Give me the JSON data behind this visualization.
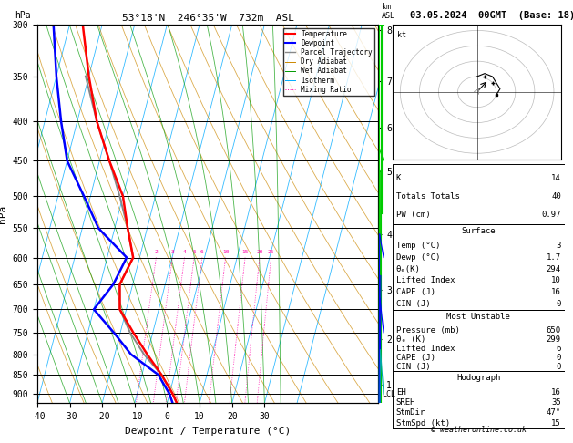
{
  "title_left": "53°18'N  246°35'W  732m  ASL",
  "title_right": "03.05.2024  00GMT  (Base: 18)",
  "xlabel": "Dewpoint / Temperature (°C)",
  "ylabel_left": "hPa",
  "pressure_levels": [
    300,
    350,
    400,
    450,
    500,
    550,
    600,
    650,
    700,
    750,
    800,
    850,
    900
  ],
  "km_ticks": [
    8,
    7,
    6,
    5,
    4,
    3,
    2,
    1
  ],
  "km_pressures": [
    305,
    355,
    408,
    465,
    560,
    660,
    765,
    875
  ],
  "xmin": -40,
  "xmax": 35,
  "pmin": 300,
  "pmax": 925,
  "temp_color": "#ff0000",
  "dewp_color": "#0000ff",
  "parcel_color": "#888888",
  "dry_adiabat_color": "#cc8800",
  "wet_adiabat_color": "#009900",
  "isotherm_color": "#00aaff",
  "mixing_ratio_color": "#ff00aa",
  "background_color": "#ffffff",
  "legend_entries": [
    "Temperature",
    "Dewpoint",
    "Parcel Trajectory",
    "Dry Adiabat",
    "Wet Adiabat",
    "Isotherm",
    "Mixing Ratio"
  ],
  "legend_colors": [
    "#ff0000",
    "#0000ff",
    "#888888",
    "#cc8800",
    "#009900",
    "#00aaff",
    "#ff00aa"
  ],
  "legend_styles": [
    "-",
    "-",
    "-",
    "-",
    "-",
    "-",
    ":"
  ],
  "mixing_ratio_labels": [
    2,
    3,
    4,
    5,
    6,
    10,
    15,
    20,
    25
  ],
  "temp_p": [
    925,
    900,
    850,
    800,
    750,
    700,
    650,
    600,
    550,
    500,
    450,
    400,
    350,
    300
  ],
  "temp_T": [
    3,
    1,
    -4,
    -10,
    -16,
    -22,
    -24,
    -22,
    -26,
    -30,
    -37,
    -44,
    -50,
    -56
  ],
  "dewp_p": [
    925,
    900,
    850,
    800,
    750,
    700,
    650,
    600,
    550,
    500,
    450,
    400,
    350,
    300
  ],
  "dewp_T": [
    1.7,
    0,
    -5,
    -15,
    -22,
    -30,
    -26,
    -24,
    -35,
    -42,
    -50,
    -55,
    -60,
    -65
  ],
  "parcel_p": [
    925,
    900,
    850,
    800,
    750,
    700,
    650,
    600,
    550,
    500,
    450,
    400,
    350
  ],
  "parcel_T": [
    3,
    1,
    -4,
    -11,
    -17,
    -22,
    -24,
    -22,
    -26,
    -31,
    -37,
    -44,
    -51
  ],
  "K": "14",
  "TotalsT": "40",
  "PW_cm": "0.97",
  "lcl_pressure": 900,
  "copyright": "© weatheronline.co.uk",
  "surf_temp": "3",
  "surf_dewp": "1.7",
  "surf_theta_e": "294",
  "surf_li": "10",
  "surf_cape": "16",
  "surf_cin": "0",
  "mu_pres": "650",
  "mu_theta_e": "299",
  "mu_li": "6",
  "mu_cape": "0",
  "mu_cin": "0",
  "hodo_eh": "16",
  "hodo_sreh": "35",
  "hodo_stmdir": "47°",
  "hodo_stmspd": "15"
}
